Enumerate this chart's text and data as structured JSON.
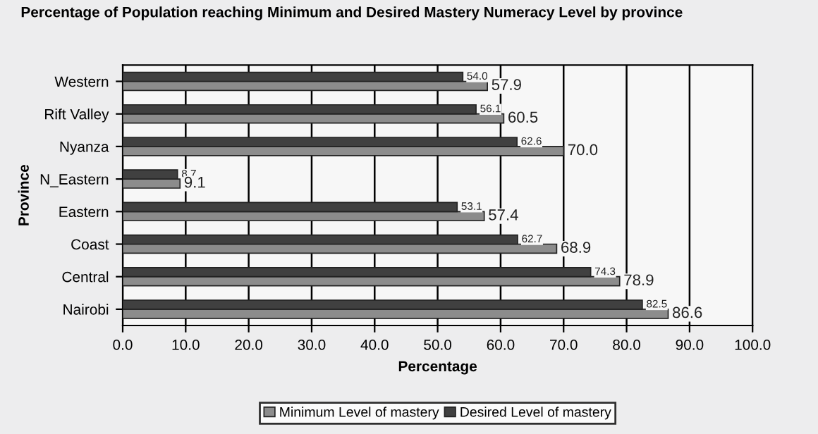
{
  "chart_data": {
    "type": "bar",
    "orientation": "horizontal",
    "title": "Percentage of Population reaching Minimum and Desired Mastery Numeracy Level by province",
    "xlabel": "Percentage",
    "ylabel": "Province",
    "categories": [
      "Western",
      "Rift Valley",
      "Nyanza",
      "N_Eastern",
      "Eastern",
      "Coast",
      "Central",
      "Nairobi"
    ],
    "series": [
      {
        "name": "Minimum Level of mastery",
        "color": "#8c8c8c",
        "values": [
          57.9,
          60.5,
          70.0,
          9.1,
          57.4,
          68.9,
          78.9,
          86.6
        ],
        "value_labels": [
          "57.9",
          "60.5",
          "70.0",
          "9.1",
          "57.4",
          "68.9",
          "78.9",
          "86.6"
        ]
      },
      {
        "name": "Desired Level of mastery",
        "color": "#404040",
        "values": [
          54.0,
          56.1,
          62.6,
          8.7,
          53.1,
          62.7,
          74.3,
          82.5
        ],
        "value_labels": [
          "54.0",
          "56.1",
          "62.6",
          "8.7",
          "53.1",
          "62.7",
          "74.3",
          "82.5"
        ]
      }
    ],
    "xlim": [
      0,
      100
    ],
    "xticks": [
      {
        "value": 0,
        "label": "0.0"
      },
      {
        "value": 10,
        "label": "10.0"
      },
      {
        "value": 20,
        "label": "20.0"
      },
      {
        "value": 30,
        "label": "30.0"
      },
      {
        "value": 40,
        "label": "40.0"
      },
      {
        "value": 50,
        "label": "50.0"
      },
      {
        "value": 60,
        "label": "60.0"
      },
      {
        "value": 70,
        "label": "70.0"
      },
      {
        "value": 80,
        "label": "80.0"
      },
      {
        "value": 90,
        "label": "90.0"
      },
      {
        "value": 100,
        "label": "100.0"
      }
    ],
    "grid": "x",
    "legend": "bottom"
  }
}
